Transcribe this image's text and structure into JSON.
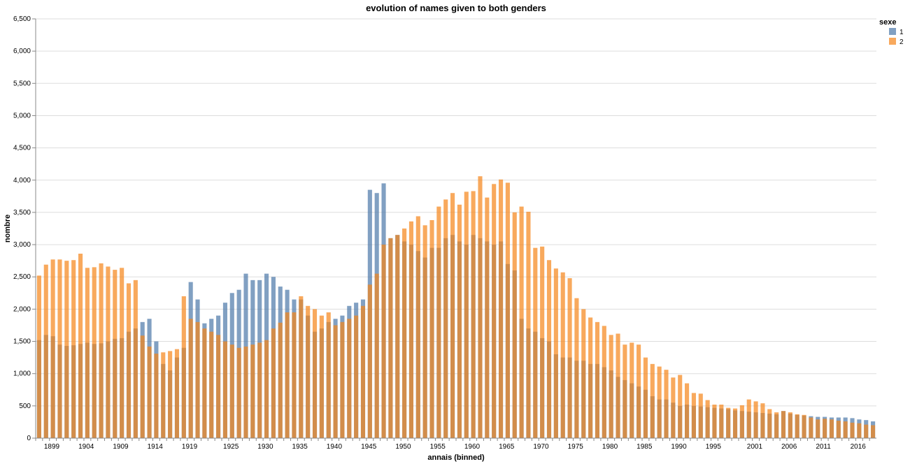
{
  "chart_data": {
    "type": "bar",
    "title": "evolution of names given to both genders",
    "xlabel": "annais (binned)",
    "ylabel": "nombre",
    "ylim": [
      0,
      6500
    ],
    "yticks": [
      0,
      500,
      1000,
      1500,
      2000,
      2500,
      3000,
      3500,
      4000,
      4500,
      5000,
      5500,
      6000,
      6500
    ],
    "ytick_labels": [
      "0",
      "500",
      "1,000",
      "1,500",
      "2,000",
      "2,500",
      "3,000",
      "3,500",
      "4,000",
      "4,500",
      "5,000",
      "5,500",
      "6,000",
      "6,500"
    ],
    "xticks": [
      1899,
      1904,
      1909,
      1914,
      1919,
      1925,
      1930,
      1935,
      1940,
      1945,
      1950,
      1955,
      1960,
      1965,
      1970,
      1975,
      1980,
      1985,
      1990,
      1995,
      2001,
      2006,
      2011,
      2016
    ],
    "xlim": [
      1898,
      2020
    ],
    "grid": true,
    "stacked": false,
    "overlap": true,
    "opacity": 0.7,
    "legend": {
      "title": "sexe",
      "position": "top-right",
      "entries": [
        {
          "label": "1",
          "color": "#4c78a8"
        },
        {
          "label": "2",
          "color": "#f58518"
        }
      ]
    },
    "x": [
      1898,
      1899,
      1900,
      1901,
      1902,
      1903,
      1904,
      1905,
      1906,
      1907,
      1908,
      1909,
      1910,
      1911,
      1912,
      1913,
      1914,
      1915,
      1916,
      1917,
      1918,
      1919,
      1920,
      1921,
      1922,
      1923,
      1924,
      1925,
      1926,
      1927,
      1928,
      1929,
      1930,
      1931,
      1932,
      1933,
      1934,
      1935,
      1936,
      1937,
      1938,
      1939,
      1940,
      1941,
      1942,
      1943,
      1944,
      1945,
      1946,
      1947,
      1948,
      1949,
      1950,
      1951,
      1952,
      1953,
      1954,
      1955,
      1956,
      1957,
      1958,
      1959,
      1960,
      1961,
      1962,
      1963,
      1964,
      1965,
      1966,
      1967,
      1968,
      1969,
      1970,
      1971,
      1972,
      1973,
      1974,
      1975,
      1976,
      1977,
      1978,
      1979,
      1980,
      1981,
      1982,
      1983,
      1984,
      1985,
      1986,
      1987,
      1988,
      1989,
      1990,
      1991,
      1992,
      1993,
      1994,
      1995,
      1996,
      1997,
      1998,
      1999,
      2000,
      2001,
      2002,
      2003,
      2004,
      2005,
      2006,
      2007,
      2008,
      2009,
      2010,
      2011,
      2012,
      2013,
      2014,
      2015,
      2016,
      2017,
      2018,
      2019
    ],
    "series": [
      {
        "name": "1",
        "color": "#4c78a8",
        "values": [
          1520,
          1600,
          1580,
          1450,
          1430,
          1440,
          1460,
          1480,
          1460,
          1470,
          1500,
          1540,
          1550,
          1650,
          1700,
          1800,
          1850,
          1500,
          1150,
          1050,
          1250,
          1400,
          2420,
          2150,
          1780,
          1850,
          1900,
          2100,
          2250,
          2300,
          2550,
          2450,
          2450,
          2550,
          2500,
          2350,
          2300,
          2150,
          2150,
          1900,
          1650,
          1700,
          1800,
          1850,
          1900,
          2050,
          2100,
          2150,
          3850,
          3800,
          3950,
          3100,
          3150,
          3050,
          3000,
          2900,
          2800,
          2950,
          2950,
          3100,
          3150,
          3050,
          3000,
          3150,
          3100,
          3050,
          3000,
          3050,
          2700,
          2600,
          1850,
          1700,
          1650,
          1550,
          1500,
          1300,
          1250,
          1250,
          1200,
          1200,
          1150,
          1150,
          1100,
          1050,
          950,
          900,
          850,
          800,
          750,
          650,
          600,
          600,
          550,
          500,
          520,
          500,
          490,
          480,
          470,
          460,
          450,
          430,
          420,
          410,
          400,
          390,
          380,
          370,
          420,
          380,
          360,
          350,
          340,
          330,
          330,
          320,
          320,
          320,
          310,
          290,
          280,
          260
        ]
      },
      {
        "name": "2",
        "color": "#f58518",
        "values": [
          2520,
          2690,
          2770,
          2770,
          2750,
          2760,
          2860,
          2640,
          2650,
          2710,
          2660,
          2610,
          2640,
          2400,
          2450,
          1590,
          1420,
          1310,
          1330,
          1350,
          1380,
          2200,
          1850,
          1800,
          1700,
          1650,
          1600,
          1500,
          1450,
          1400,
          1420,
          1450,
          1480,
          1520,
          1700,
          1790,
          1950,
          1950,
          2200,
          2050,
          2000,
          1900,
          1950,
          1750,
          1800,
          1850,
          1900,
          2050,
          2380,
          2550,
          3000,
          3100,
          3150,
          3250,
          3360,
          3440,
          3300,
          3380,
          3590,
          3700,
          3800,
          3620,
          3820,
          3830,
          4060,
          3730,
          3940,
          4010,
          3960,
          3500,
          3590,
          3510,
          2950,
          2970,
          2760,
          2630,
          2570,
          2480,
          2170,
          2000,
          1870,
          1800,
          1740,
          1600,
          1620,
          1450,
          1480,
          1450,
          1250,
          1150,
          1110,
          1060,
          940,
          980,
          850,
          700,
          690,
          590,
          520,
          520,
          470,
          460,
          510,
          600,
          570,
          540,
          450,
          400,
          420,
          400,
          370,
          360,
          320,
          290,
          300,
          290,
          270,
          260,
          240,
          230,
          210,
          200
        ]
      }
    ]
  }
}
